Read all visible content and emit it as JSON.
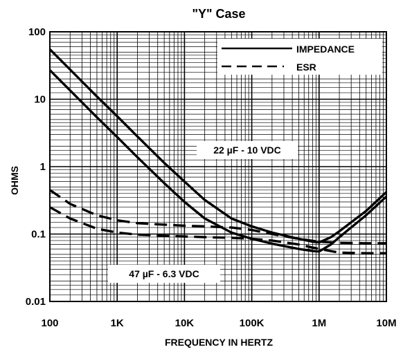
{
  "chart_data": {
    "type": "line",
    "title": "\"Y\" Case",
    "xlabel": "FREQUENCY IN HERTZ",
    "ylabel": "OHMS",
    "x_scale": "log",
    "y_scale": "log",
    "xlim": [
      100,
      10000000
    ],
    "ylim": [
      0.01,
      100
    ],
    "x_ticks": [
      {
        "value": 100,
        "label": "100"
      },
      {
        "value": 1000,
        "label": "1K"
      },
      {
        "value": 10000,
        "label": "10K"
      },
      {
        "value": 100000,
        "label": "100K"
      },
      {
        "value": 1000000,
        "label": "1M"
      },
      {
        "value": 10000000,
        "label": "10M"
      }
    ],
    "y_ticks": [
      {
        "value": 0.01,
        "label": "0.01"
      },
      {
        "value": 0.1,
        "label": "0.1"
      },
      {
        "value": 1,
        "label": "1"
      },
      {
        "value": 10,
        "label": "10"
      },
      {
        "value": 100,
        "label": "100"
      }
    ],
    "grid": true,
    "legend": {
      "position": "top-right",
      "entries": [
        {
          "label": "IMPEDANCE",
          "style": "solid"
        },
        {
          "label": "ESR",
          "style": "dashed"
        }
      ]
    },
    "annotations": [
      "22 µF - 10 VDC",
      "47 µF - 6.3 VDC"
    ],
    "series": [
      {
        "kind": "impedance",
        "style": "solid",
        "x": [
          100,
          200,
          500,
          1000,
          2000,
          5000,
          10000,
          20000,
          50000,
          100000,
          200000,
          500000,
          800000,
          1000000,
          1500000,
          2000000,
          5000000,
          10000000
        ],
        "y": [
          55,
          27.5,
          11,
          5.6,
          2.8,
          1.14,
          0.6,
          0.32,
          0.17,
          0.13,
          0.105,
          0.085,
          0.077,
          0.075,
          0.09,
          0.11,
          0.22,
          0.42
        ]
      },
      {
        "kind": "impedance",
        "style": "solid",
        "x": [
          100,
          200,
          500,
          1000,
          2000,
          5000,
          10000,
          20000,
          50000,
          100000,
          200000,
          500000,
          800000,
          1000000,
          1500000,
          2000000,
          5000000,
          10000000
        ],
        "y": [
          27,
          13.5,
          5.4,
          2.75,
          1.38,
          0.57,
          0.3,
          0.17,
          0.105,
          0.085,
          0.072,
          0.06,
          0.056,
          0.055,
          0.07,
          0.09,
          0.19,
          0.36
        ]
      },
      {
        "kind": "esr",
        "style": "dashed",
        "x": [
          100,
          200,
          500,
          1000,
          2000,
          5000,
          10000,
          20000,
          50000,
          100000,
          200000,
          500000,
          1000000,
          2000000,
          5000000,
          10000000
        ],
        "y": [
          0.45,
          0.28,
          0.19,
          0.16,
          0.145,
          0.138,
          0.133,
          0.13,
          0.125,
          0.115,
          0.1,
          0.085,
          0.077,
          0.074,
          0.073,
          0.073
        ]
      },
      {
        "kind": "esr",
        "style": "dashed",
        "x": [
          100,
          200,
          500,
          1000,
          2000,
          5000,
          10000,
          20000,
          50000,
          100000,
          200000,
          500000,
          1000000,
          2000000,
          5000000,
          10000000
        ],
        "y": [
          0.25,
          0.17,
          0.12,
          0.105,
          0.098,
          0.094,
          0.092,
          0.09,
          0.088,
          0.085,
          0.08,
          0.07,
          0.06,
          0.053,
          0.052,
          0.052
        ]
      }
    ]
  }
}
